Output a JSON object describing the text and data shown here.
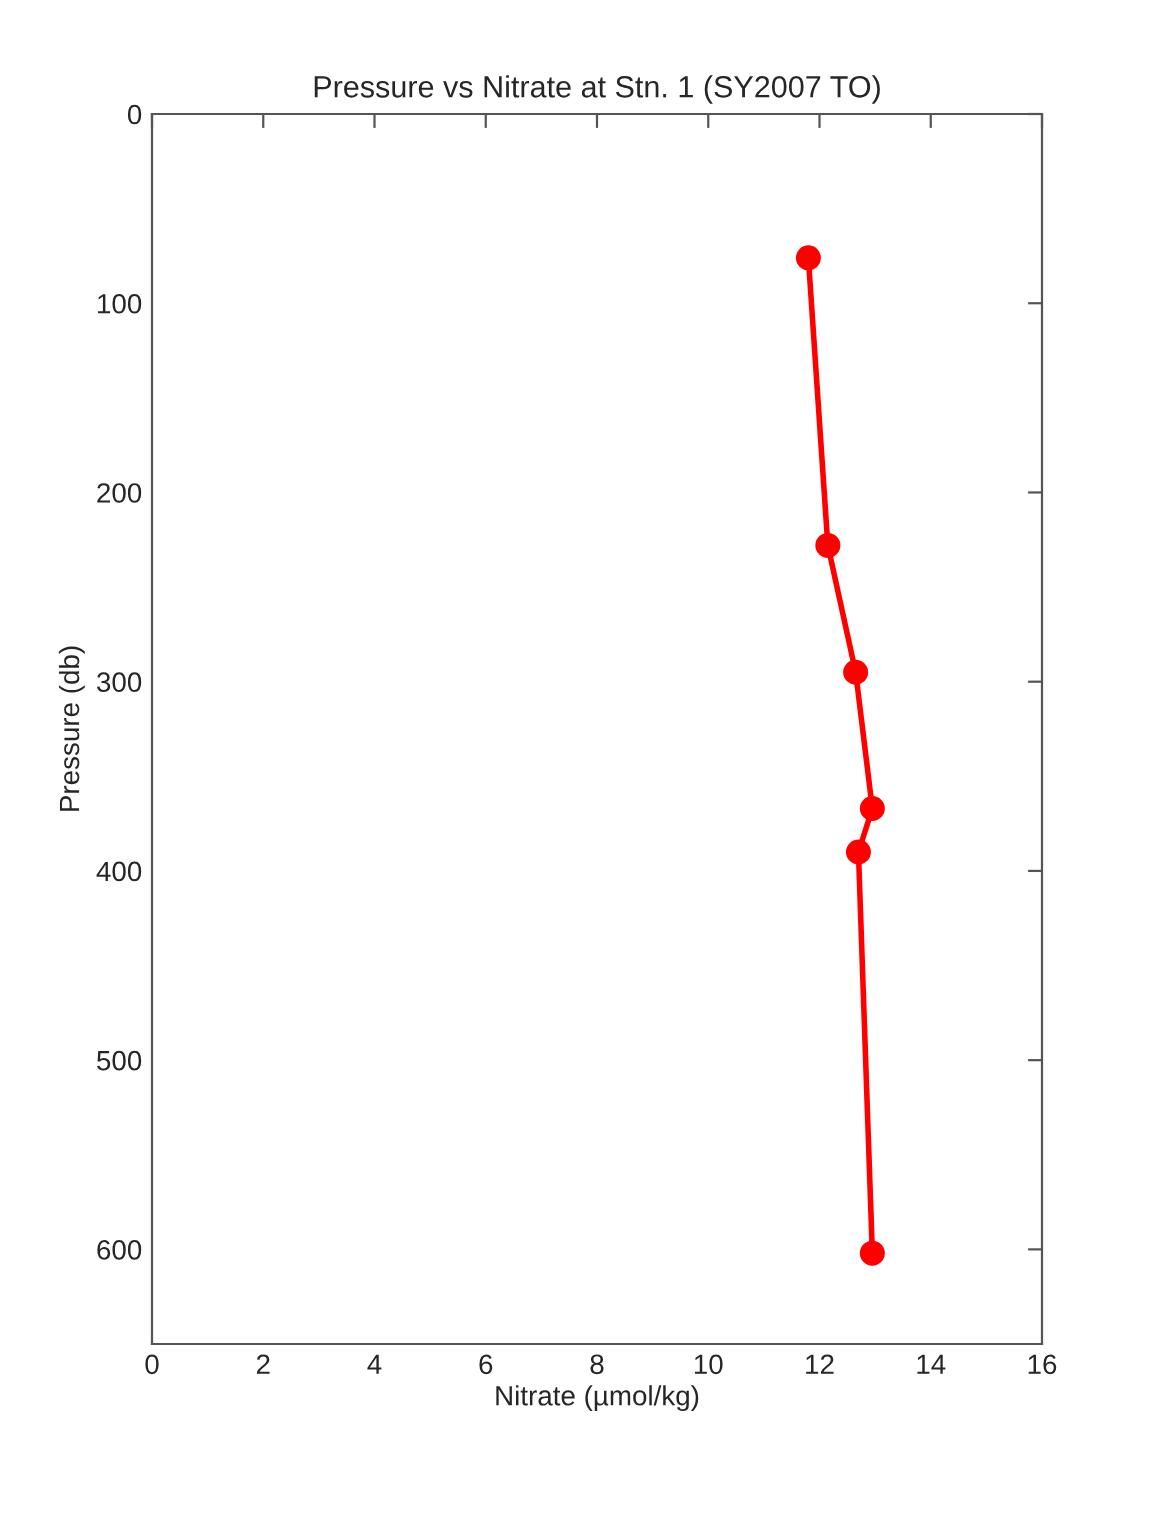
{
  "chart_data": {
    "type": "line",
    "title": "Pressure vs Nitrate at Stn. 1 (SY2007 TO)",
    "xlabel": "Nitrate (µmol/kg)",
    "ylabel": "Pressure (db)",
    "series": [
      {
        "color": "#ff0000",
        "x": [
          11.8,
          12.15,
          12.65,
          12.95,
          12.7,
          12.95
        ],
        "values": [
          76,
          228,
          295,
          367,
          390,
          602
        ]
      }
    ],
    "xlim": [
      0,
      16
    ],
    "xticks": [
      0,
      2,
      4,
      6,
      8,
      10,
      12,
      14,
      16
    ],
    "ylim": [
      650,
      0
    ],
    "yticks": [
      0,
      100,
      200,
      300,
      400,
      500,
      600
    ],
    "marker": "circle",
    "line_style": "solid",
    "grid": false,
    "legend": false
  }
}
